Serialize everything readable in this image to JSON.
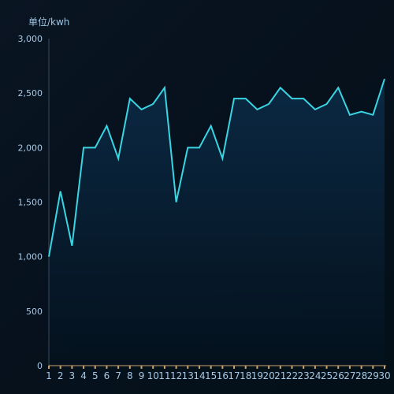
{
  "chart_data": {
    "type": "area",
    "title": "",
    "xlabel": "",
    "ylabel": "单位/kwh",
    "x": [
      "1",
      "2",
      "3",
      "4",
      "5",
      "6",
      "7",
      "8",
      "9",
      "10",
      "11",
      "12",
      "13",
      "14",
      "15",
      "16",
      "17",
      "18",
      "19",
      "20",
      "21",
      "22",
      "23",
      "24",
      "25",
      "26",
      "27",
      "28",
      "29",
      "30"
    ],
    "values": [
      1000,
      1600,
      1100,
      2000,
      2000,
      2200,
      1900,
      2450,
      2350,
      2400,
      2550,
      1500,
      2000,
      2000,
      2200,
      1900,
      2450,
      2450,
      2350,
      2400,
      2550,
      2450,
      2450,
      2350,
      2400,
      2550,
      2300,
      2330,
      2300,
      2630
    ],
    "ylim": [
      0,
      3000
    ],
    "yticks": [
      "0",
      "500",
      "1,000",
      "1,500",
      "2,000",
      "2,500",
      "3,000"
    ],
    "grid": false,
    "colors": {
      "line": "#39d5e3",
      "area_top": "#0b2a45",
      "area_bottom": "#04111d",
      "y_axis_line": "#3a4a5c",
      "x_axis_line": "#c9a36b",
      "x_tick_mark": "#c9a36b"
    }
  }
}
